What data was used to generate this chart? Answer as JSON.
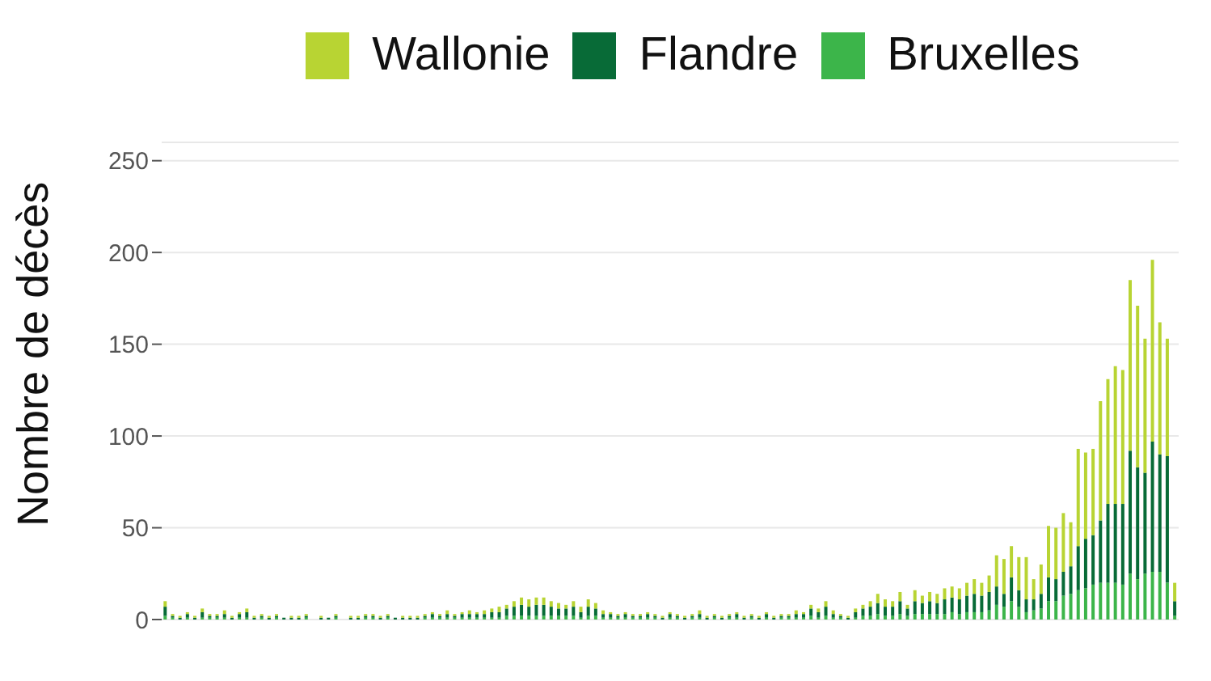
{
  "chart_data": {
    "type": "bar",
    "stacked": true,
    "ylabel": "Nombre de décès",
    "categories": [
      null,
      null,
      null,
      null,
      null,
      null,
      null,
      null,
      null,
      null,
      null,
      null,
      null,
      null,
      null,
      null,
      null,
      null,
      null,
      null,
      null,
      null,
      null,
      null,
      null,
      null,
      null,
      null,
      null,
      null,
      null,
      null,
      null,
      null,
      null,
      null,
      null,
      null,
      null,
      null,
      null,
      null,
      null,
      null,
      null,
      null,
      null,
      null,
      null,
      null,
      null,
      null,
      null,
      null,
      null,
      null,
      null,
      null,
      null,
      null,
      null,
      null,
      null,
      null,
      null,
      null,
      null,
      null,
      null,
      null,
      null,
      null,
      null,
      null,
      null,
      null,
      null,
      null,
      null,
      null,
      null,
      null,
      null,
      null,
      null,
      null,
      null,
      null,
      null,
      null,
      null,
      null,
      null,
      null,
      null,
      null,
      null,
      null,
      null,
      null,
      null,
      null,
      null,
      null,
      null,
      null,
      null,
      null,
      null,
      null,
      null,
      null,
      null,
      null,
      null,
      null,
      null,
      null,
      null,
      null,
      null,
      null,
      null,
      null,
      null,
      null,
      null,
      null,
      null,
      null,
      null,
      null,
      null,
      null,
      null,
      null,
      null
    ],
    "series": [
      {
        "name": "Bruxelles",
        "color": "#3cb54a",
        "values": [
          2,
          1,
          0,
          1,
          0,
          1,
          1,
          1,
          1,
          0,
          1,
          1,
          0,
          1,
          0,
          1,
          0,
          0,
          0,
          1,
          0,
          0,
          0,
          1,
          0,
          0,
          0,
          1,
          1,
          0,
          1,
          0,
          0,
          0,
          0,
          1,
          1,
          1,
          1,
          1,
          1,
          1,
          1,
          1,
          1,
          1,
          2,
          2,
          2,
          2,
          2,
          2,
          2,
          2,
          2,
          2,
          1,
          2,
          2,
          1,
          1,
          1,
          1,
          1,
          1,
          1,
          1,
          0,
          1,
          1,
          0,
          1,
          1,
          0,
          1,
          0,
          1,
          1,
          0,
          1,
          0,
          1,
          0,
          1,
          1,
          1,
          1,
          2,
          1,
          2,
          1,
          1,
          0,
          1,
          2,
          2,
          3,
          2,
          2,
          3,
          2,
          3,
          3,
          3,
          3,
          3,
          4,
          3,
          4,
          4,
          4,
          5,
          8,
          7,
          10,
          7,
          4,
          5,
          6,
          10,
          10,
          13,
          14,
          16,
          17,
          19,
          20,
          20,
          20,
          19,
          25,
          22,
          25,
          26,
          26,
          20,
          2
        ]
      },
      {
        "name": "Flandre",
        "color": "#086b37",
        "values": [
          5,
          1,
          1,
          2,
          1,
          3,
          1,
          1,
          2,
          1,
          2,
          3,
          1,
          1,
          1,
          1,
          1,
          1,
          1,
          1,
          0,
          1,
          1,
          1,
          0,
          1,
          1,
          1,
          1,
          1,
          1,
          1,
          1,
          1,
          1,
          1,
          2,
          1,
          2,
          1,
          2,
          2,
          2,
          2,
          3,
          3,
          4,
          5,
          6,
          5,
          6,
          6,
          5,
          4,
          4,
          5,
          3,
          5,
          4,
          2,
          2,
          1,
          2,
          1,
          1,
          2,
          1,
          1,
          2,
          1,
          1,
          1,
          2,
          1,
          1,
          1,
          1,
          2,
          1,
          1,
          1,
          2,
          1,
          1,
          1,
          2,
          2,
          4,
          3,
          5,
          2,
          1,
          1,
          3,
          4,
          5,
          6,
          5,
          5,
          7,
          4,
          7,
          6,
          7,
          6,
          8,
          8,
          8,
          9,
          10,
          9,
          10,
          10,
          7,
          13,
          9,
          7,
          6,
          8,
          13,
          12,
          13,
          15,
          24,
          27,
          27,
          34,
          43,
          43,
          44,
          67,
          61,
          55,
          71,
          64,
          69,
          8
        ]
      },
      {
        "name": "Wallonie",
        "color": "#b8d433",
        "values": [
          3,
          1,
          1,
          1,
          1,
          2,
          1,
          1,
          2,
          1,
          1,
          2,
          1,
          1,
          1,
          1,
          0,
          1,
          1,
          1,
          0,
          1,
          0,
          1,
          0,
          1,
          1,
          1,
          1,
          1,
          1,
          0,
          1,
          1,
          1,
          1,
          1,
          1,
          2,
          1,
          1,
          2,
          1,
          2,
          2,
          3,
          2,
          3,
          4,
          4,
          4,
          4,
          3,
          3,
          2,
          3,
          3,
          4,
          3,
          2,
          1,
          1,
          1,
          1,
          1,
          1,
          1,
          1,
          1,
          1,
          1,
          1,
          2,
          1,
          1,
          1,
          1,
          1,
          1,
          1,
          1,
          1,
          1,
          1,
          1,
          2,
          1,
          2,
          2,
          3,
          2,
          1,
          1,
          2,
          2,
          3,
          5,
          4,
          3,
          5,
          2,
          6,
          4,
          5,
          5,
          6,
          6,
          6,
          7,
          8,
          7,
          9,
          17,
          19,
          17,
          18,
          23,
          11,
          16,
          28,
          28,
          32,
          24,
          53,
          47,
          47,
          65,
          68,
          75,
          73,
          93,
          88,
          73,
          99,
          72,
          64,
          10
        ]
      }
    ],
    "ylim": [
      0,
      260
    ],
    "yticks": [
      0,
      50,
      100,
      150,
      200,
      250
    ],
    "grid": "y",
    "legend": "top"
  }
}
